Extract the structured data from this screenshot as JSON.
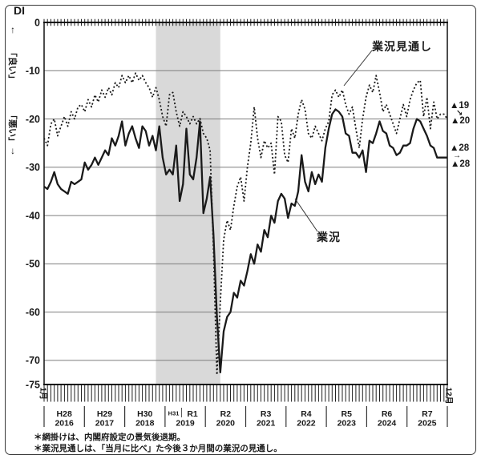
{
  "figure": {
    "di_label": "DI",
    "left_axis": {
      "up_arrow": "↑",
      "good_label": "「良い」",
      "bad_label": "「悪い」",
      "down_arrow": "↓"
    },
    "x_start_month_label": "1月",
    "x_end_month_label": "12月",
    "series_labels": {
      "current": "業況",
      "outlook": "業況見通し"
    },
    "annotations_right": {
      "outlook_prev": "▲19",
      "outlook_arrow": "↘",
      "outlook_latest": "▲20",
      "current_prev": "▲28",
      "current_arrow": "→",
      "current_latest": "▲28"
    },
    "footnotes": [
      "＊網掛けは、内閣府設定の景気後退期。",
      "＊業況見通しは、「当月に比べ」た今後３か月間の業況の見通し。"
    ],
    "colors": {
      "line": "#1a1a1a",
      "grid": "#7d7d7d",
      "shade": "#d9d9d9",
      "background": "#ffffff"
    }
  },
  "chart_data": {
    "type": "line",
    "title": "",
    "ylabel": "DI",
    "ylim": [
      -75,
      0
    ],
    "yticks": [
      0,
      -10,
      -20,
      -30,
      -40,
      -50,
      -60,
      -70,
      -75
    ],
    "x_unit": "month",
    "x_range": [
      "2016-01",
      "2025-12"
    ],
    "x_years": [
      {
        "era": "H28",
        "year": "2016"
      },
      {
        "era": "H29",
        "year": "2017"
      },
      {
        "era": "H30",
        "year": "2018"
      },
      {
        "era": "H31",
        "era2": "R1",
        "year": "2019"
      },
      {
        "era": "R2",
        "year": "2020"
      },
      {
        "era": "R3",
        "year": "2021"
      },
      {
        "era": "R4",
        "year": "2022"
      },
      {
        "era": "R5",
        "year": "2023"
      },
      {
        "era": "R6",
        "year": "2024"
      },
      {
        "era": "R7",
        "year": "2025"
      }
    ],
    "recession_shading": {
      "from": "2018-10",
      "to": "2020-05"
    },
    "grid": true,
    "series": [
      {
        "name": "業況",
        "style": "solid",
        "values": [
          -34,
          -34.5,
          -33,
          -31,
          -33.5,
          -34.5,
          -35,
          -35.5,
          -33,
          -33.5,
          -33,
          -32.5,
          -29,
          -30.5,
          -29.5,
          -28,
          -29.5,
          -28,
          -26.5,
          -27.5,
          -24,
          -25.5,
          -23.5,
          -20.5,
          -25.5,
          -23,
          -21.5,
          -24,
          -26,
          -21.5,
          -22.5,
          -25.5,
          -23.5,
          -26.5,
          -21.5,
          -28,
          -31.5,
          -30.5,
          -31.5,
          -25.5,
          -37,
          -33.5,
          -22,
          -31.5,
          -32.5,
          -28,
          -20.5,
          -39.5,
          -36.5,
          -32,
          -44,
          -61,
          -72.5,
          -64,
          -61,
          -60,
          -56,
          -57,
          -53.5,
          -54.5,
          -51.5,
          -48,
          -50,
          -46,
          -47.5,
          -43,
          -44.5,
          -40,
          -41.5,
          -37,
          -35.5,
          -36.5,
          -40.5,
          -37.5,
          -38,
          -35,
          -27.5,
          -33,
          -35,
          -31,
          -33.5,
          -31.5,
          -33,
          -26,
          -22,
          -19,
          -18,
          -18.5,
          -19.5,
          -23,
          -23.5,
          -27,
          -27,
          -28,
          -26.5,
          -31,
          -24.5,
          -25,
          -23,
          -20.5,
          -22.5,
          -23,
          -25.5,
          -26,
          -27.5,
          -27,
          -25.5,
          -25.5,
          -25,
          -22,
          -20,
          -20.5,
          -22,
          -23.5,
          -25.5,
          -26,
          -28,
          -28,
          -28,
          -28
        ]
      },
      {
        "name": "業況見通し",
        "style": "dotted",
        "values": [
          -24,
          -25.5,
          -21,
          -20,
          -23.5,
          -21.5,
          -19.5,
          -21.5,
          -18.5,
          -20,
          -17.5,
          -17,
          -18.5,
          -16,
          -17.5,
          -15,
          -16.5,
          -14,
          -15.5,
          -13.5,
          -15,
          -12.5,
          -13.5,
          -11,
          -12.5,
          -11,
          -12.5,
          -10.5,
          -12,
          -11,
          -12.5,
          -13.5,
          -15.5,
          -13.5,
          -16,
          -19.5,
          -21.5,
          -15,
          -14.5,
          -18.5,
          -21.5,
          -18.5,
          -19.5,
          -21,
          -19.5,
          -21,
          -19.9,
          -23,
          -24,
          -26.5,
          -47,
          -73,
          -58,
          -45,
          -41,
          -43,
          -38,
          -34,
          -32,
          -37,
          -30,
          -25,
          -17.5,
          -24,
          -28,
          -24.5,
          -26,
          -25,
          -31.5,
          -19.5,
          -20.5,
          -27.5,
          -29,
          -22,
          -24,
          -19,
          -16,
          -18,
          -23,
          -24,
          -21.5,
          -23,
          -24.5,
          -22,
          -20.5,
          -15,
          -14,
          -15.5,
          -14,
          -17,
          -19,
          -17.5,
          -22,
          -26,
          -20,
          -15.5,
          -13,
          -14.5,
          -11,
          -14.5,
          -18.5,
          -17,
          -19,
          -21,
          -23,
          -20,
          -17,
          -19.5,
          -16,
          -14,
          -12.5,
          -12,
          -19.5,
          -15.5,
          -22,
          -16.5,
          -20,
          -19,
          -19,
          -20
        ]
      }
    ],
    "latest_values": {
      "業況": [
        -28,
        -28
      ],
      "業況見通し": [
        -19,
        -20
      ]
    },
    "legend_position": "annotated-on-chart"
  }
}
